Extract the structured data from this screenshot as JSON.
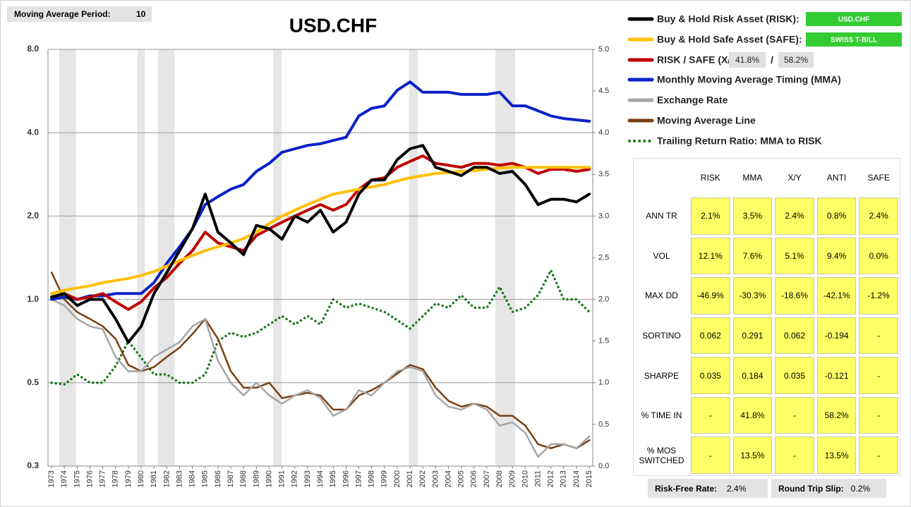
{
  "controls": {
    "ma_period_label": "Moving Average Period:",
    "ma_period": "10",
    "risk_free_label": "Risk-Free Rate:",
    "risk_free": "2.4%",
    "slip_label": "Round Trip Slip:",
    "slip": "0.2%"
  },
  "chart_data": {
    "type": "line",
    "title": "USD.CHF",
    "ylog": true,
    "grid": true,
    "xlim": [
      1972.72,
      2015.27
    ],
    "xticks": [
      1973,
      1974,
      1975,
      1976,
      1977,
      1978,
      1979,
      1980,
      1981,
      1982,
      1983,
      1984,
      1985,
      1986,
      1987,
      1988,
      1989,
      1990,
      1991,
      1992,
      1993,
      1994,
      1995,
      1996,
      1997,
      1998,
      1999,
      2000,
      2001,
      2002,
      2003,
      2004,
      2005,
      2006,
      2007,
      2008,
      2009,
      2010,
      2011,
      2012,
      2013,
      2014,
      2015
    ],
    "ylim": [
      0.25,
      8
    ],
    "yticks": [
      {
        "value": 0.25,
        "label": "0.3"
      },
      0.5,
      {
        "value": 1,
        "label": "1.0"
      },
      {
        "value": 2,
        "label": "2.0"
      },
      {
        "value": 4,
        "label": "4.0"
      },
      {
        "value": 8,
        "label": "8.0"
      }
    ],
    "y2lim": [
      0,
      5
    ],
    "y2ticks": [
      {
        "value": 0,
        "label": "0.0"
      },
      0.5,
      {
        "value": 1,
        "label": "1.0"
      },
      1.5,
      {
        "value": 2,
        "label": "2.0"
      },
      2.5,
      {
        "value": 3,
        "label": "3.0"
      },
      3.5,
      {
        "value": 4,
        "label": "4.0"
      },
      4.5,
      {
        "value": 5,
        "label": "5.0"
      }
    ],
    "shaded_periods": [
      [
        1973.6,
        1974.9
      ],
      [
        1979.7,
        1980.27
      ],
      [
        1981.3,
        1982.6
      ],
      [
        1990.3,
        1990.97
      ],
      [
        2000.9,
        2001.6
      ],
      [
        2007.67,
        2009.2
      ]
    ],
    "shade_color": "#e6e6e6",
    "x": [
      1973,
      1974,
      1975,
      1976,
      1977,
      1978,
      1979,
      1980,
      1981,
      1982,
      1983,
      1984,
      1985,
      1986,
      1987,
      1988,
      1989,
      1990,
      1991,
      1992,
      1993,
      1994,
      1995,
      1996,
      1997,
      1998,
      1999,
      2000,
      2001,
      2002,
      2003,
      2004,
      2005,
      2006,
      2007,
      2008,
      2009,
      2010,
      2011,
      2012,
      2013,
      2014,
      2015
    ],
    "series": [
      {
        "name": "Buy & Hold Risk Asset (RISK):",
        "asset": "USD.CHF",
        "color": "#000000",
        "values": [
          1.02,
          1.05,
          0.95,
          1.0,
          1.0,
          0.85,
          0.7,
          0.8,
          1.05,
          1.25,
          1.5,
          1.8,
          2.4,
          1.75,
          1.6,
          1.45,
          1.85,
          1.8,
          1.65,
          2.0,
          1.9,
          2.1,
          1.75,
          1.9,
          2.4,
          2.7,
          2.7,
          3.2,
          3.5,
          3.6,
          3.0,
          2.9,
          2.8,
          3.0,
          3.0,
          2.85,
          2.9,
          2.6,
          2.2,
          2.3,
          2.3,
          2.25,
          2.4
        ]
      },
      {
        "name": "Buy & Hold Safe Asset (SAFE):",
        "asset": "SWISS T-BILL",
        "color": "#ffc000",
        "values": [
          1.05,
          1.08,
          1.1,
          1.12,
          1.15,
          1.17,
          1.19,
          1.22,
          1.26,
          1.32,
          1.38,
          1.44,
          1.5,
          1.55,
          1.6,
          1.66,
          1.75,
          1.88,
          2.0,
          2.1,
          2.2,
          2.3,
          2.4,
          2.45,
          2.5,
          2.55,
          2.6,
          2.68,
          2.75,
          2.8,
          2.85,
          2.87,
          2.9,
          2.92,
          2.95,
          2.98,
          3.0,
          3.0,
          3.0,
          3.0,
          3.0,
          3.0,
          3.0
        ]
      },
      {
        "name": "RISK / SAFE (X/Y):",
        "ratio": {
          "risk": "41.8%",
          "sep": "/",
          "safe": "58.2%"
        },
        "color": "#c00000",
        "values": [
          1.02,
          1.05,
          1.0,
          1.02,
          1.05,
          0.98,
          0.92,
          0.98,
          1.1,
          1.2,
          1.35,
          1.5,
          1.75,
          1.6,
          1.55,
          1.5,
          1.7,
          1.8,
          1.9,
          2.0,
          2.1,
          2.2,
          2.1,
          2.2,
          2.5,
          2.7,
          2.75,
          3.0,
          3.15,
          3.3,
          3.1,
          3.05,
          3.0,
          3.1,
          3.1,
          3.05,
          3.1,
          3.0,
          2.85,
          2.95,
          2.95,
          2.9,
          2.95
        ]
      },
      {
        "name": "Monthly Moving Average Timing (MMA)",
        "color": "#0a22c8",
        "values": [
          1.0,
          1.02,
          1.0,
          1.03,
          1.03,
          1.05,
          1.05,
          1.05,
          1.15,
          1.35,
          1.55,
          1.8,
          2.2,
          2.35,
          2.5,
          2.6,
          2.9,
          3.1,
          3.4,
          3.5,
          3.6,
          3.65,
          3.75,
          3.85,
          4.6,
          4.9,
          5.0,
          5.7,
          6.1,
          5.6,
          5.6,
          5.6,
          5.5,
          5.5,
          5.5,
          5.6,
          5.0,
          5.0,
          4.8,
          4.6,
          4.5,
          4.45,
          4.4
        ]
      },
      {
        "name": "Exchange Rate",
        "color": "#a6a6a6",
        "values": [
          1.0,
          0.95,
          0.85,
          0.8,
          0.78,
          0.62,
          0.55,
          0.55,
          0.62,
          0.66,
          0.7,
          0.8,
          0.85,
          0.6,
          0.5,
          0.45,
          0.5,
          0.45,
          0.42,
          0.45,
          0.47,
          0.44,
          0.38,
          0.4,
          0.47,
          0.45,
          0.5,
          0.55,
          0.57,
          0.55,
          0.45,
          0.41,
          0.4,
          0.42,
          0.4,
          0.35,
          0.36,
          0.33,
          0.27,
          0.3,
          0.3,
          0.29,
          0.32
        ]
      },
      {
        "name": "Moving Average Line",
        "color": "#7b3f12",
        "values": [
          1.25,
          1.0,
          0.9,
          0.85,
          0.8,
          0.72,
          0.58,
          0.55,
          0.57,
          0.62,
          0.67,
          0.75,
          0.85,
          0.72,
          0.55,
          0.48,
          0.48,
          0.5,
          0.44,
          0.45,
          0.46,
          0.45,
          0.4,
          0.4,
          0.45,
          0.47,
          0.5,
          0.54,
          0.58,
          0.56,
          0.48,
          0.43,
          0.41,
          0.42,
          0.41,
          0.38,
          0.38,
          0.35,
          0.3,
          0.29,
          0.3,
          0.29,
          0.31
        ]
      },
      {
        "name": "Trailing Return Ratio: MMA to RISK",
        "color": "#1a7a1a",
        "axis": "y2",
        "dotted": true,
        "values": [
          1.0,
          0.98,
          1.1,
          1.0,
          1.0,
          1.2,
          1.5,
          1.3,
          1.1,
          1.1,
          1.0,
          1.0,
          1.1,
          1.5,
          1.6,
          1.55,
          1.6,
          1.7,
          1.8,
          1.7,
          1.8,
          1.7,
          2.0,
          1.9,
          1.95,
          1.9,
          1.85,
          1.75,
          1.65,
          1.8,
          1.95,
          1.9,
          2.05,
          1.9,
          1.9,
          2.15,
          1.85,
          1.9,
          2.05,
          2.35,
          2.0,
          2.0,
          1.85
        ]
      }
    ]
  },
  "stats_table": {
    "columns": [
      "RISK",
      "MMA",
      "X/Y",
      "ANTI",
      "SAFE"
    ],
    "rows": [
      {
        "label": "ANN TR",
        "cells": [
          "2.1%",
          "3.5%",
          "2.4%",
          "0.8%",
          "2.4%"
        ]
      },
      {
        "label": "VOL",
        "cells": [
          "12.1%",
          "7.6%",
          "5.1%",
          "9.4%",
          "0.0%"
        ]
      },
      {
        "label": "MAX DD",
        "cells": [
          "-46.9%",
          "-30.3%",
          "-18.6%",
          "-42.1%",
          "-1.2%"
        ]
      },
      {
        "label": "SORTINO",
        "cells": [
          "0.062",
          "0.291",
          "0.062",
          "-0.194",
          "-"
        ]
      },
      {
        "label": "SHARPE",
        "cells": [
          "0.035",
          "0.184",
          "0.035",
          "-0.121",
          "-"
        ]
      },
      {
        "label": "% TIME IN",
        "cells": [
          "-",
          "41.8%",
          "-",
          "58.2%",
          "-"
        ]
      },
      {
        "label": "% MOS SWITCHED",
        "cells": [
          "-",
          "13.5%",
          "-",
          "13.5%",
          "-"
        ]
      }
    ]
  }
}
